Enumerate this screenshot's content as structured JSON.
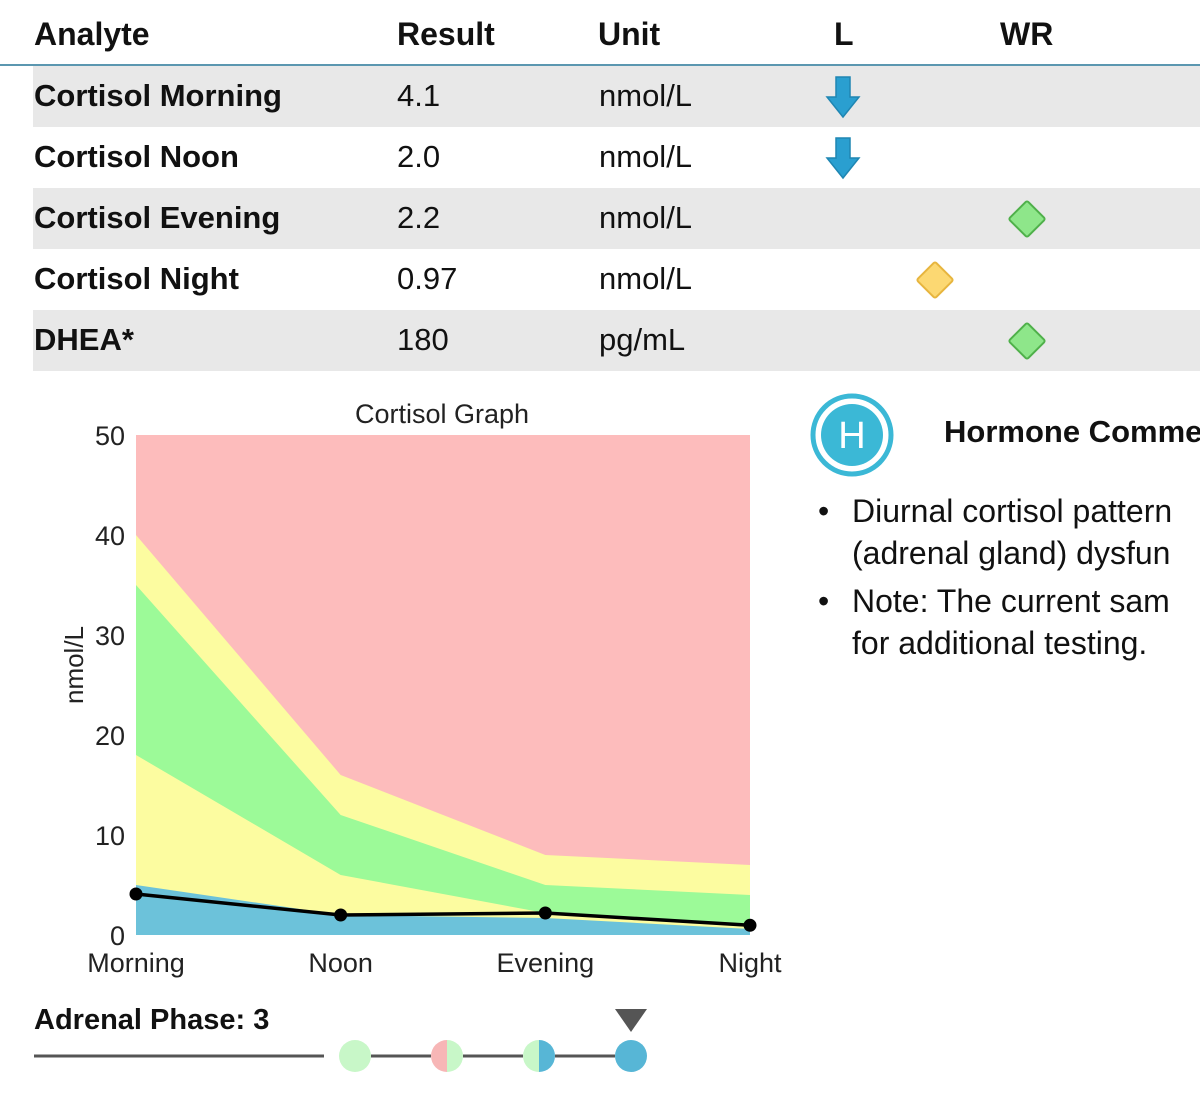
{
  "table": {
    "headers": [
      "Analyte",
      "Result",
      "Unit",
      "L",
      "WR"
    ],
    "rows": [
      {
        "analyte": "Cortisol Morning",
        "result": "4.1",
        "unit": "nmol/L",
        "flag": "low"
      },
      {
        "analyte": "Cortisol Noon",
        "result": "2.0",
        "unit": "nmol/L",
        "flag": "low"
      },
      {
        "analyte": "Cortisol Evening",
        "result": "2.2",
        "unit": "nmol/L",
        "flag": "within-range"
      },
      {
        "analyte": "Cortisol Night",
        "result": "0.97",
        "unit": "nmol/L",
        "flag": "borderline"
      },
      {
        "analyte": "DHEA*",
        "result": "180",
        "unit": "pg/mL",
        "flag": "within-range"
      }
    ],
    "colors": {
      "low_arrow": "#2a9fd0",
      "within_range": "#8ee68a",
      "borderline": "#fcd872",
      "header_rule": "#5b97b0"
    }
  },
  "chart_data": {
    "type": "area",
    "title": "Cortisol Graph",
    "ylabel": "nmol/L",
    "xlabel": "",
    "categories": [
      "Morning",
      "Noon",
      "Evening",
      "Night"
    ],
    "ylim": [
      0,
      50
    ],
    "yticks": [
      0,
      10,
      20,
      30,
      40,
      50
    ],
    "bands": [
      {
        "color": "#6cc2da",
        "upper": [
          5,
          2,
          1.7,
          0.6
        ]
      },
      {
        "color": "#fcfca0",
        "upper": [
          18,
          6,
          2.2,
          0.8
        ]
      },
      {
        "color": "#9cfa98",
        "upper": [
          35,
          12,
          5,
          4
        ]
      },
      {
        "color": "#fcfca0",
        "upper": [
          40,
          16,
          8,
          7
        ]
      },
      {
        "color": "#fdbcbc",
        "upper": [
          50,
          50,
          50,
          50
        ]
      }
    ],
    "series": [
      {
        "values": [
          4.1,
          2.0,
          2.2,
          0.97
        ],
        "color": "#000000"
      }
    ],
    "grid": false
  },
  "comments": {
    "icon_letter": "H",
    "icon_color": "#3bb8d6",
    "title": "Hormone Comme",
    "items": [
      {
        "lines": [
          "Diurnal cortisol pattern",
          "(adrenal gland) dysfun"
        ]
      },
      {
        "lines": [
          "Note: The current sam",
          "for additional testing."
        ]
      }
    ],
    "bullet": "•"
  },
  "adrenal_phase": {
    "label": "Adrenal Phase:",
    "value": "3",
    "phases": [
      {
        "left_color": "#c8f7c8",
        "right_color": "#c8f7c8"
      },
      {
        "left_color": "#f7b6b6",
        "right_color": "#c8f7c8"
      },
      {
        "left_color": "#c8f7c8",
        "right_color": "#57b6d6"
      },
      {
        "left_color": "#57b6d6",
        "right_color": "#57b6d6"
      }
    ],
    "current_index": 3,
    "pointer_color": "#555555",
    "line_color": "#555555"
  }
}
